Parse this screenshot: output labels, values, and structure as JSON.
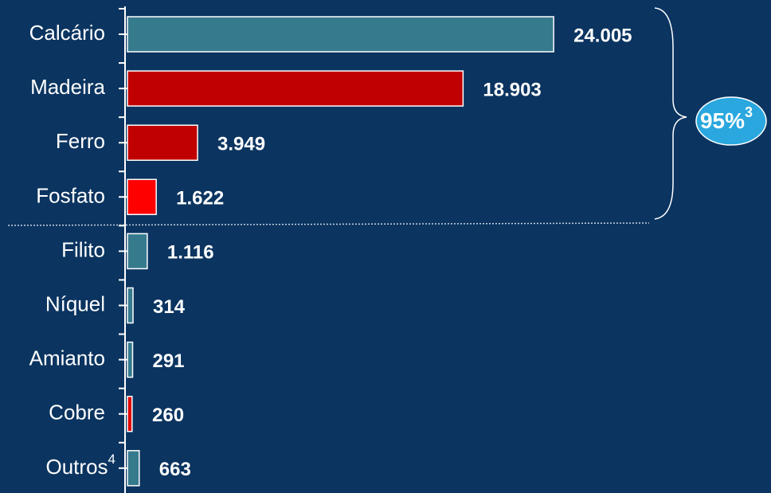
{
  "chart_data": {
    "type": "bar",
    "orientation": "horizontal",
    "categories": [
      "Calcário",
      "Madeira",
      "Ferro",
      "Fosfato",
      "Filito",
      "Níquel",
      "Amianto",
      "Cobre",
      "Outros"
    ],
    "category_superscripts": [
      null,
      null,
      null,
      null,
      null,
      null,
      null,
      null,
      "4"
    ],
    "values": [
      24005,
      18903,
      3949,
      1622,
      1116,
      314,
      291,
      260,
      663
    ],
    "value_labels": [
      "24.005",
      "18.903",
      "3.949",
      "1.622",
      "1.116",
      "314",
      "291",
      "260",
      "663"
    ],
    "colors": [
      "#367a8e",
      "#c00000",
      "#c00000",
      "#ff0000",
      "#367a8e",
      "#367a8e",
      "#367a8e",
      "#e00000",
      "#367a8e"
    ],
    "xlim": [
      0,
      24000
    ],
    "annotation": {
      "text": "95%",
      "superscript": "3"
    }
  }
}
